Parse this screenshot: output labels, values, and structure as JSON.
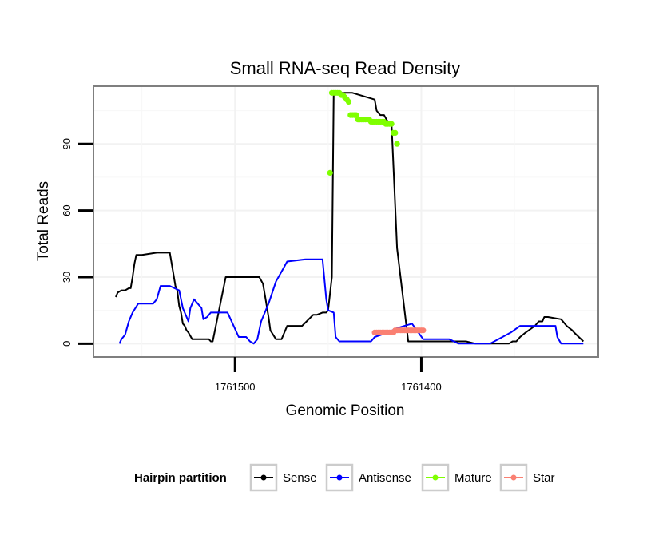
{
  "chart_data": {
    "type": "line",
    "title": "Small RNA-seq Read Density",
    "xlabel": "Genomic Position",
    "ylabel": "Total Reads",
    "x_reversed": true,
    "xlim": [
      1761576,
      1761305
    ],
    "ylim": [
      -6,
      116
    ],
    "x_ticks": [
      1761500,
      1761400
    ],
    "x_tick_labels": [
      "1761500",
      "1761400"
    ],
    "y_ticks": [
      0,
      30,
      60,
      90
    ],
    "y_tick_labels": [
      "0",
      "30",
      "60",
      "90"
    ],
    "grid": true,
    "legend": {
      "title": "Hairpin partition",
      "placement": "bottom",
      "entries": [
        {
          "label": "Sense",
          "color": "#000000"
        },
        {
          "label": "Antisense",
          "color": "#0000ff"
        },
        {
          "label": "Mature",
          "color": "#7fff00"
        },
        {
          "label": "Star",
          "color": "#fa8072"
        }
      ]
    },
    "series": [
      {
        "name": "Sense",
        "color": "#000000",
        "mode": "line",
        "x": [
          1761564,
          1761563,
          1761561,
          1761559,
          1761557,
          1761556,
          1761555,
          1761554,
          1761553,
          1761550,
          1761542,
          1761538,
          1761535,
          1761533,
          1761532,
          1761531,
          1761530,
          1761529,
          1761528,
          1761527,
          1761526,
          1761525,
          1761523,
          1761514,
          1761513,
          1761512,
          1761505,
          1761487,
          1761485,
          1761484,
          1761482,
          1761481,
          1761478,
          1761475,
          1761472,
          1761464,
          1761458,
          1761457,
          1761456,
          1761453,
          1761451,
          1761450,
          1761448,
          1761447,
          1761445,
          1761437,
          1761425,
          1761424,
          1761422,
          1761420,
          1761418,
          1761417,
          1761416,
          1761413,
          1761407,
          1761404,
          1761401,
          1761400,
          1761398,
          1761395,
          1761376,
          1761371,
          1761368,
          1761364,
          1761355,
          1761353,
          1761351,
          1761349,
          1761347,
          1761344,
          1761339,
          1761337,
          1761335,
          1761334,
          1761332,
          1761325,
          1761322,
          1761319,
          1761318,
          1761313
        ],
        "y": [
          21,
          23,
          24,
          24,
          25,
          25,
          30,
          36,
          40,
          40,
          41,
          41,
          41,
          31,
          26,
          24,
          17,
          14,
          9,
          8,
          6,
          5,
          2,
          2,
          1,
          1,
          30,
          30,
          27,
          22,
          12,
          6,
          2,
          2,
          8,
          8,
          13,
          13,
          13,
          14,
          14,
          15,
          30,
          113,
          113,
          113,
          110,
          105,
          103,
          103,
          100,
          100,
          100,
          43,
          1,
          1,
          1,
          1,
          1,
          1,
          1,
          0,
          0,
          0,
          0,
          0,
          1,
          1,
          3,
          5,
          8,
          10,
          10,
          12,
          12,
          11,
          8,
          6,
          5,
          1
        ],
        "line_width": 2
      },
      {
        "name": "Antisense",
        "color": "#0000ff",
        "mode": "line",
        "x": [
          1761562,
          1761561,
          1761559,
          1761557,
          1761555,
          1761552,
          1761544,
          1761542,
          1761540,
          1761538,
          1761535,
          1761530,
          1761528,
          1761526,
          1761525,
          1761524,
          1761522,
          1761520,
          1761518,
          1761517,
          1761515,
          1761513,
          1761504,
          1761498,
          1761496,
          1761494,
          1761492,
          1761490,
          1761488,
          1761486,
          1761482,
          1761478,
          1761474,
          1761472,
          1761462,
          1761455,
          1761453,
          1761451,
          1761450,
          1761447,
          1761446,
          1761444,
          1761427,
          1761425,
          1761418,
          1761413,
          1761405,
          1761399,
          1761385,
          1761380,
          1761363,
          1761352,
          1761347,
          1761328,
          1761327,
          1761325,
          1761313
        ],
        "y": [
          0,
          2,
          4,
          10,
          14,
          18,
          18,
          20,
          26,
          26,
          26,
          24,
          16,
          12,
          10,
          16,
          20,
          18,
          16,
          11,
          12,
          14,
          14,
          3,
          3,
          3,
          1,
          0,
          2,
          10,
          18,
          28,
          34,
          37,
          38,
          38,
          38,
          20,
          15,
          14,
          3,
          1,
          1,
          3,
          5,
          7,
          9,
          2,
          2,
          0,
          0,
          5,
          8,
          8,
          3,
          0,
          0
        ],
        "line_width": 2
      },
      {
        "name": "Mature",
        "color": "#7fff00",
        "mode": "points",
        "x": [
          1761449,
          1761448,
          1761447,
          1761446,
          1761445,
          1761444,
          1761443,
          1761442,
          1761441,
          1761440,
          1761439,
          1761438,
          1761437,
          1761436,
          1761435,
          1761434,
          1761433,
          1761432,
          1761431,
          1761430,
          1761429,
          1761428,
          1761427,
          1761426,
          1761425,
          1761424,
          1761423,
          1761422,
          1761421,
          1761420,
          1761419,
          1761418,
          1761417,
          1761416,
          1761415,
          1761414,
          1761413
        ],
        "y": [
          77,
          113,
          113,
          113,
          113,
          113,
          112,
          112,
          111,
          110,
          109,
          103,
          103,
          103,
          103,
          101,
          101,
          101,
          101,
          101,
          101,
          101,
          100,
          100,
          100,
          100,
          100,
          100,
          100,
          100,
          99,
          99,
          99,
          99,
          95,
          95,
          90
        ]
      },
      {
        "name": "Star",
        "color": "#fa8072",
        "mode": "points",
        "x": [
          1761425,
          1761424,
          1761423,
          1761422,
          1761421,
          1761420,
          1761419,
          1761418,
          1761417,
          1761416,
          1761415,
          1761414,
          1761413,
          1761412,
          1761411,
          1761410,
          1761409,
          1761408,
          1761407,
          1761406,
          1761405,
          1761404,
          1761403,
          1761402,
          1761401,
          1761400,
          1761399
        ],
        "y": [
          5,
          5,
          5,
          5,
          5,
          5,
          5,
          5,
          5,
          5,
          5,
          6,
          6,
          6,
          6,
          6,
          6,
          6,
          6,
          6,
          6,
          6,
          6,
          6,
          6,
          6,
          6
        ]
      }
    ]
  }
}
